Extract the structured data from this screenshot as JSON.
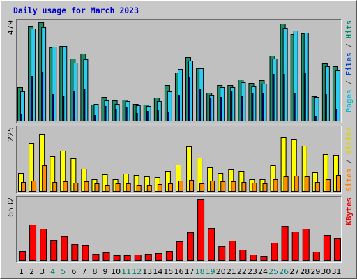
{
  "chart_data": {
    "type": "bar",
    "title": "Daily usage for March 2023",
    "x": [
      "1",
      "2",
      "3",
      "4",
      "5",
      "6",
      "7",
      "8",
      "9",
      "10",
      "11",
      "12",
      "13",
      "14",
      "15",
      "16",
      "17",
      "18",
      "19",
      "20",
      "21",
      "22",
      "23",
      "24",
      "25",
      "26",
      "27",
      "28",
      "29",
      "30",
      "31"
    ],
    "weekend_days": [
      "4",
      "5",
      "11",
      "12",
      "18",
      "19",
      "25",
      "26"
    ],
    "panels": [
      {
        "id": "pages-files-hits",
        "max_label": "479",
        "ylim": [
          0,
          479
        ],
        "side_labels": [
          {
            "text": "Pages",
            "color": "#00bcd4"
          },
          {
            "text": " / ",
            "color": "#444444"
          },
          {
            "text": "Files",
            "color": "#0044cc"
          },
          {
            "text": " / ",
            "color": "#444444"
          },
          {
            "text": "Hits",
            "color": "#008a6a"
          }
        ],
        "series": [
          {
            "name": "Hits",
            "color": "#1f8f6a",
            "values": [
              165,
              461,
              479,
              356,
              364,
              304,
              328,
              82,
              117,
              101,
              106,
              86,
              82,
              115,
              174,
              237,
              309,
              256,
              139,
              174,
              176,
              201,
              187,
              200,
              317,
              471,
              422,
              426,
              123,
              281,
              265
            ]
          },
          {
            "name": "Files",
            "color": "#30ccf0",
            "values": [
              144,
              448,
              457,
              361,
              365,
              283,
              301,
              84,
              101,
              84,
              97,
              78,
              73,
              97,
              145,
              253,
              292,
              255,
              129,
              165,
              166,
              189,
              168,
              182,
              304,
              453,
              439,
              427,
              117,
              265,
              245
            ]
          },
          {
            "name": "Pages",
            "color": "#0000aa",
            "values": [
              36,
              220,
              240,
              130,
              120,
              150,
              160,
              30,
              75,
              60,
              68,
              40,
              52,
              55,
              48,
              128,
              215,
              160,
              112,
              118,
              150,
              120,
              137,
              135,
              228,
              230,
              135,
              235,
              25,
              130,
              60
            ]
          }
        ]
      },
      {
        "id": "visits-sites",
        "max_label": "225",
        "ylim": [
          0,
          225
        ],
        "side_labels": [
          {
            "text": "Sites",
            "color": "#ff8000"
          },
          {
            "text": " / ",
            "color": "#444444"
          },
          {
            "text": "Visits",
            "color": "#e0d000"
          }
        ],
        "series": [
          {
            "name": "Visits",
            "color": "#ffff00",
            "values": [
              67,
              174,
              208,
              128,
              147,
              120,
              82,
              45,
              63,
              44,
              65,
              61,
              54,
              53,
              76,
              97,
              162,
              122,
              88,
              68,
              80,
              76,
              44,
              45,
              95,
              195,
              191,
              166,
              71,
              136,
              133
            ]
          },
          {
            "name": "Sites",
            "color": "#ff8c00",
            "values": [
              35,
              39,
              94,
              36,
              38,
              33,
              37,
              30,
              26,
              30,
              29,
              25,
              24,
              27,
              30,
              39,
              42,
              29,
              39,
              38,
              37,
              36,
              32,
              30,
              45,
              56,
              58,
              56,
              35,
              44,
              61
            ]
          }
        ]
      },
      {
        "id": "kbytes",
        "max_label": "6532",
        "ylim": [
          0,
          6532
        ],
        "side_labels": [
          {
            "text": "KBytes",
            "color": "#ee0000"
          }
        ],
        "series": [
          {
            "name": "KBytes",
            "color": "#ff0000",
            "values": [
              1021,
              3868,
              3425,
              2245,
              2627,
              1762,
              1712,
              745,
              873,
              601,
              600,
              702,
              776,
              798,
              1050,
              2095,
              3068,
              6532,
              3455,
              1593,
              2155,
              1172,
              655,
              523,
              1964,
              3678,
              3103,
              3434,
              930,
              2771,
              2462
            ]
          }
        ]
      }
    ]
  }
}
